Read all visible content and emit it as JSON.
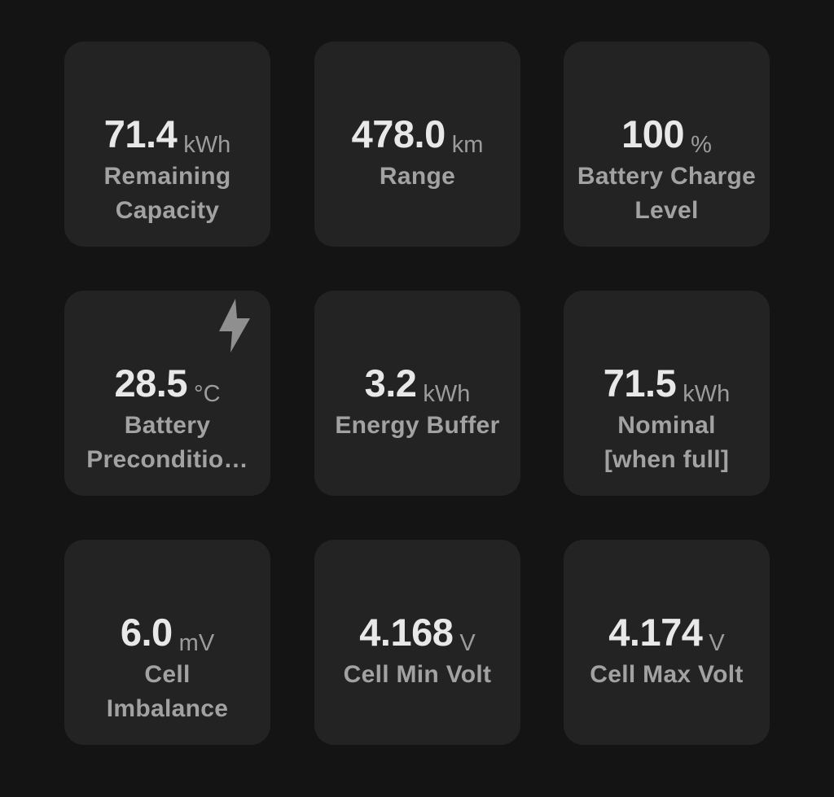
{
  "tiles": [
    {
      "value": "71.4",
      "unit": "kWh",
      "label": "Remaining Capacity"
    },
    {
      "value": "478.0",
      "unit": "km",
      "label": "Range"
    },
    {
      "value": "100",
      "unit": "%",
      "label": "Battery Charge Level"
    },
    {
      "value": "28.5",
      "unit": "°C",
      "label": "Battery Preconditio…",
      "icon": "lightning-bolt-icon"
    },
    {
      "value": "3.2",
      "unit": "kWh",
      "label": "Energy Buffer"
    },
    {
      "value": "71.5",
      "unit": "kWh",
      "label": "Nominal [when full]"
    },
    {
      "value": "6.0",
      "unit": "mV",
      "label": "Cell Imbalance"
    },
    {
      "value": "4.168",
      "unit": "V",
      "label": "Cell Min Volt"
    },
    {
      "value": "4.174",
      "unit": "V",
      "label": "Cell Max Volt"
    }
  ],
  "colors": {
    "background": "#141414",
    "card": "#232323",
    "value": "#e8e8e8",
    "unit": "#9c9c9c",
    "label": "#a2a2a2",
    "icon": "#8f8f8f"
  }
}
